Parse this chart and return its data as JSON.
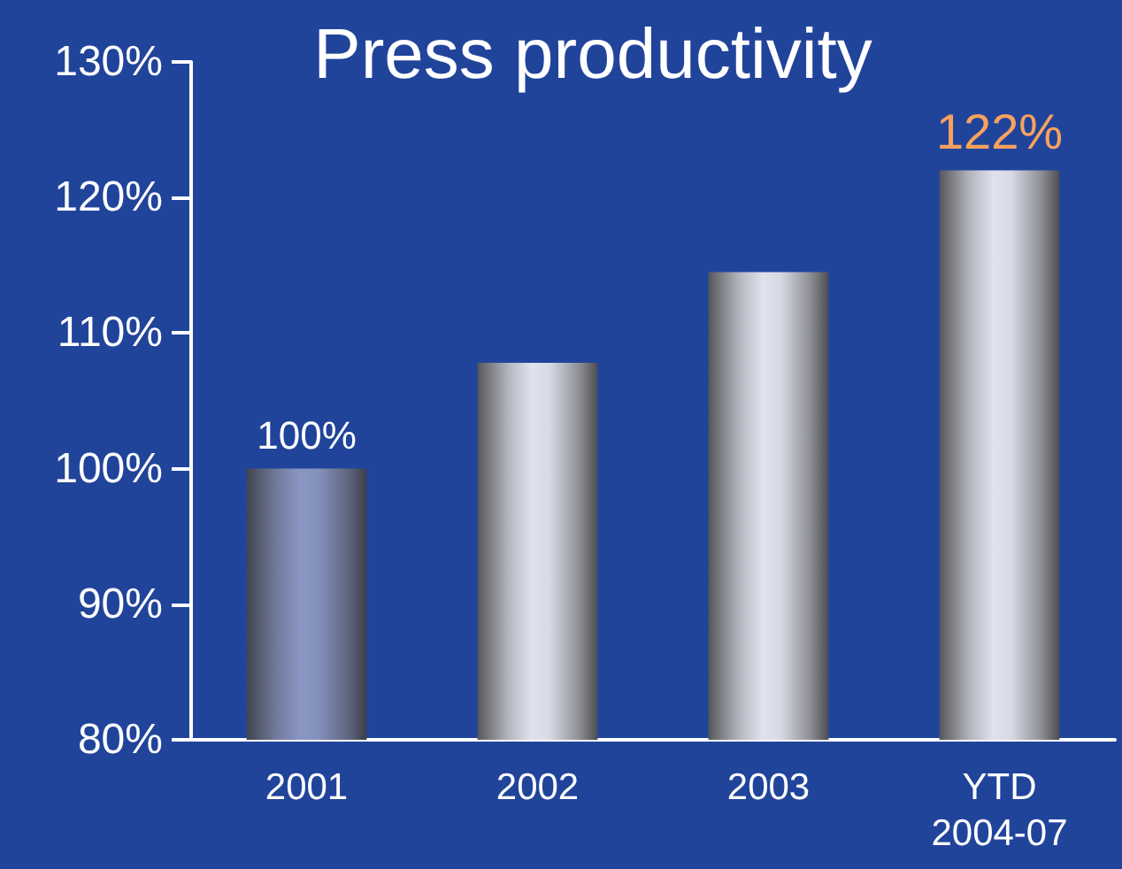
{
  "chart_data": {
    "type": "bar",
    "title": "Press productivity",
    "categories": [
      "2001",
      "2002",
      "2003",
      "YTD\n2004-07"
    ],
    "values": [
      100,
      107.8,
      114.5,
      122
    ],
    "colors": [
      "#8a96c4",
      "#e0e2ee",
      "#e0e2ee",
      "#e0e2ee"
    ],
    "value_labels": [
      "100%",
      null,
      null,
      "122%"
    ],
    "ylim": [
      80,
      130
    ],
    "yticks": [
      {
        "value": 80,
        "label": "80%"
      },
      {
        "value": 90,
        "label": "90%"
      },
      {
        "value": 100,
        "label": "100%"
      },
      {
        "value": 110,
        "label": "110%"
      },
      {
        "value": 120,
        "label": "120%"
      },
      {
        "value": 130,
        "label": "130%"
      }
    ],
    "grid": false
  }
}
